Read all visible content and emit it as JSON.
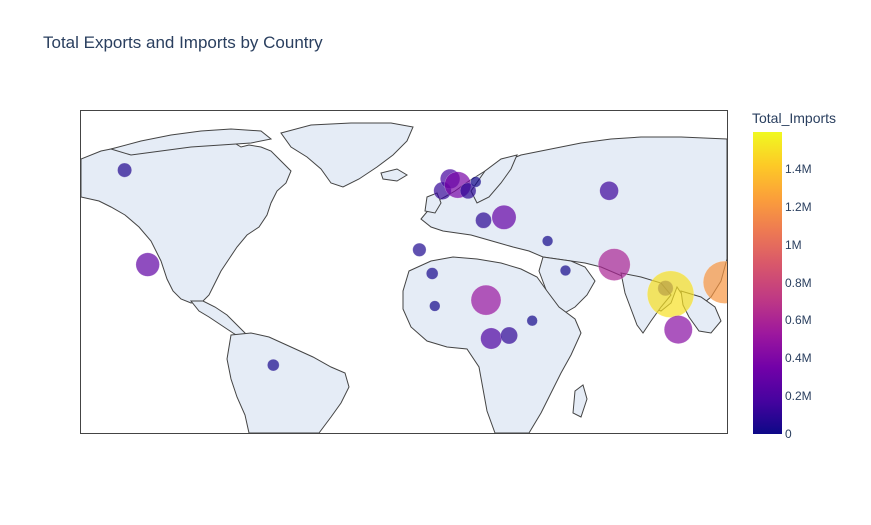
{
  "title": "Total Exports and Imports by Country",
  "colorbar": {
    "title": "Total_Imports",
    "ticks": [
      "1.4M",
      "1.2M",
      "1M",
      "0.8M",
      "0.6M",
      "0.4M",
      "0.2M",
      "0"
    ],
    "colorscale": [
      "#0d0887",
      "#46039f",
      "#7201a8",
      "#9c179e",
      "#bd3786",
      "#d8576b",
      "#ed7953",
      "#fb9f3a",
      "#fdca26",
      "#f0f921"
    ],
    "max": 1600000
  },
  "map": {
    "projection": "equirectangular",
    "land_color": "#e5ecf6",
    "lon_range": [
      -130,
      122
    ],
    "lat_range": [
      -34,
      75
    ]
  },
  "chart_data": {
    "type": "scatter",
    "x": [
      -113,
      -104,
      -55,
      2,
      7,
      8,
      11,
      14,
      17,
      21,
      24,
      27,
      28,
      30,
      35,
      37,
      46,
      52,
      59,
      76,
      78,
      98,
      100,
      103,
      121
    ],
    "y": [
      55,
      23,
      -11,
      28,
      20,
      9,
      48,
      52,
      50,
      48,
      51,
      38,
      11,
      -2,
      39,
      -1,
      4,
      31,
      21,
      48,
      23,
      15,
      13,
      1,
      17
    ],
    "values": [
      60000,
      280000,
      30000,
      50000,
      30000,
      20000,
      120000,
      170000,
      380000,
      90000,
      20000,
      90000,
      520000,
      210000,
      300000,
      110000,
      20000,
      20000,
      20000,
      150000,
      610000,
      80000,
      1500000,
      450000,
      1200000
    ]
  }
}
